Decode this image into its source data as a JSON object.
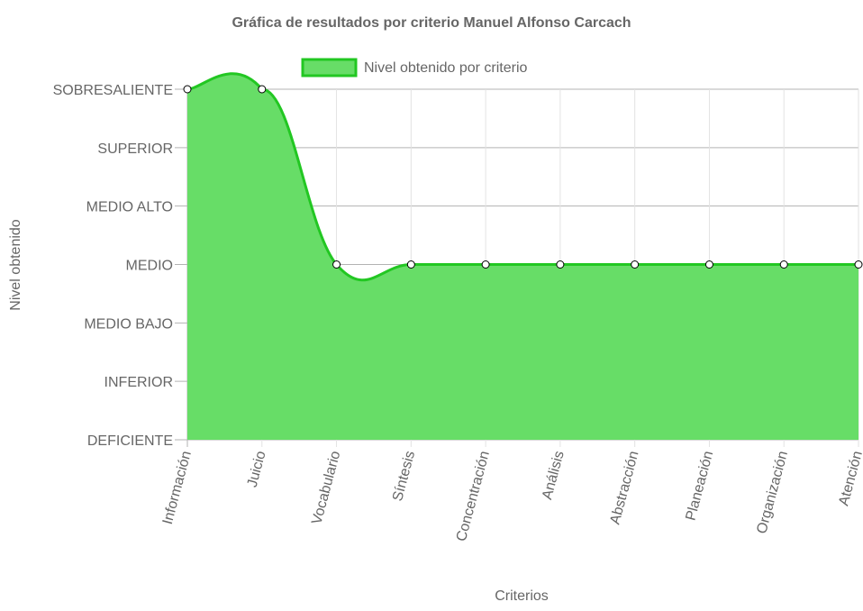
{
  "chart_data": {
    "type": "area",
    "title": "Gráfica de resultados por criterio Manuel Alfonso Carcach",
    "xlabel": "Criterios",
    "ylabel": "Nivel obtenido",
    "categories": [
      "Información",
      "Juicio",
      "Vocabulario",
      "Síntesis",
      "Concentración",
      "Análisis",
      "Abstracción",
      "Planeación",
      "Organización",
      "Atención"
    ],
    "y_levels": [
      "DEFICIENTE",
      "INFERIOR",
      "MEDIO BAJO",
      "MEDIO",
      "MEDIO ALTO",
      "SUPERIOR",
      "SOBRESALIENTE"
    ],
    "series": [
      {
        "name": "Nivel obtenido por criterio",
        "values": [
          7,
          7,
          4,
          4,
          4,
          4,
          4,
          4,
          4,
          4
        ],
        "value_labels": [
          "SOBRESALIENTE",
          "SOBRESALIENTE",
          "MEDIO",
          "MEDIO",
          "MEDIO",
          "MEDIO",
          "MEDIO",
          "MEDIO",
          "MEDIO",
          "MEDIO"
        ]
      }
    ],
    "ylim": [
      1,
      7
    ],
    "grid": true,
    "legend_position": "top",
    "colors": {
      "fill": "#67dd67",
      "line": "#22c722",
      "point_fill": "#ffffff",
      "point_stroke": "#000000"
    }
  }
}
